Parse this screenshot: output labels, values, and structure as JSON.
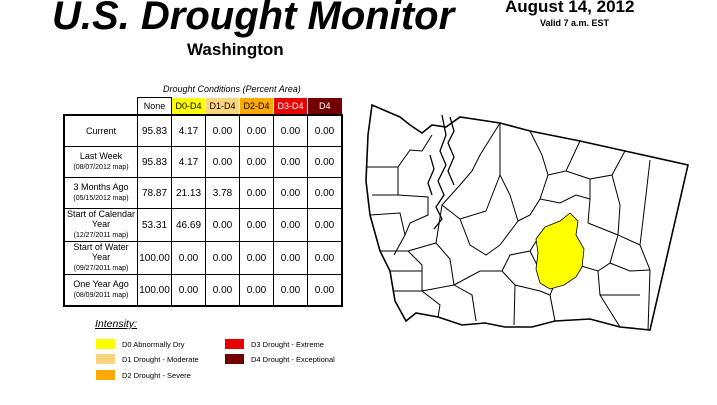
{
  "header": {
    "title": "U.S. Drought Monitor",
    "subtitle": "Washington",
    "date": "August 14, 2012",
    "valid": "Valid 7 a.m. EST"
  },
  "table": {
    "caption": "Drought Conditions (Percent Area)",
    "columns": [
      "None",
      "D0-D4",
      "D1-D4",
      "D2-D4",
      "D3-D4",
      "D4"
    ],
    "rows": [
      {
        "label": "Current",
        "sub": "",
        "values": [
          "95.83",
          "4.17",
          "0.00",
          "0.00",
          "0.00",
          "0.00"
        ]
      },
      {
        "label": "Last Week",
        "sub": "(08/07/2012 map)",
        "values": [
          "95.83",
          "4.17",
          "0.00",
          "0.00",
          "0.00",
          "0.00"
        ]
      },
      {
        "label": "3 Months Ago",
        "sub": "(05/15/2012 map)",
        "values": [
          "78.87",
          "21.13",
          "3.78",
          "0.00",
          "0.00",
          "0.00"
        ]
      },
      {
        "label": "Start of Calendar Year",
        "sub": "(12/27/2011 map)",
        "values": [
          "53.31",
          "46.69",
          "0.00",
          "0.00",
          "0.00",
          "0.00"
        ]
      },
      {
        "label": "Start of Water Year",
        "sub": "(09/27/2011 map)",
        "values": [
          "100.00",
          "0.00",
          "0.00",
          "0.00",
          "0.00",
          "0.00"
        ]
      },
      {
        "label": "One Year Ago",
        "sub": "(08/09/2011 map)",
        "values": [
          "100.00",
          "0.00",
          "0.00",
          "0.00",
          "0.00",
          "0.00"
        ]
      }
    ]
  },
  "legend": {
    "title": "Intensity:",
    "items": [
      {
        "label": "D0 Abnormally Dry",
        "color": "#ffff00"
      },
      {
        "label": "D1 Drought - Moderate",
        "color": "#fcd37f"
      },
      {
        "label": "D2 Drought - Severe",
        "color": "#ffaa00"
      },
      {
        "label": "D3 Drought - Extreme",
        "color": "#e60000"
      },
      {
        "label": "D4 Drought - Exceptional",
        "color": "#730000"
      }
    ]
  },
  "map": {
    "state": "Washington",
    "outline_color": "#000000",
    "drought_areas": [
      {
        "category": "D0",
        "color": "#ffff00"
      }
    ]
  }
}
